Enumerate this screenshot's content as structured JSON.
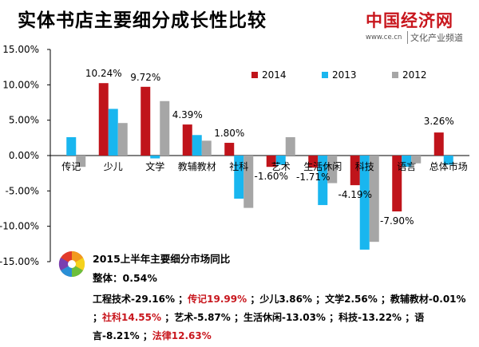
{
  "header": {
    "title": "实体书店主要细分成长性比较",
    "logo_name": "中国经济网",
    "logo_url": "www.ce.cn",
    "logo_sub": "文化产业频道"
  },
  "chart_data": {
    "type": "bar",
    "categories": [
      "传记",
      "少儿",
      "文学",
      "教辅教材",
      "社科",
      "艺术",
      "生活休闲",
      "科技",
      "语言",
      "总体市场"
    ],
    "series": [
      {
        "name": "2014",
        "color": "#c0141b",
        "values": [
          0,
          10.24,
          9.72,
          4.39,
          1.8,
          -1.6,
          -1.71,
          -4.19,
          -7.9,
          3.26
        ]
      },
      {
        "name": "2013",
        "color": "#19b6ef",
        "values": [
          2.6,
          6.6,
          -0.4,
          2.9,
          -6.1,
          -1.3,
          -7.0,
          -13.3,
          -1.6,
          -1.3
        ]
      },
      {
        "name": "2012",
        "color": "#a6a6a6",
        "values": [
          -1.6,
          4.6,
          7.7,
          2.1,
          -7.4,
          2.6,
          -3.9,
          -12.2,
          -1.1,
          0
        ]
      }
    ],
    "data_labels": [
      "",
      "10.24%",
      "9.72%",
      "4.39%",
      "1.80%",
      "-1.60%",
      "-1.71%",
      "-4.19%",
      "-7.90%",
      "3.26%"
    ],
    "yticks": [
      "15.00%",
      "10.00%",
      "5.00%",
      "0.00%",
      "-5.00%",
      "-10.00%",
      "-15.00%"
    ],
    "ylim": [
      -15,
      15
    ],
    "legend_position": "top-right",
    "grid": false
  },
  "note": {
    "title": "2015上半年主要细分市场同比",
    "overall": "整体：0.54%",
    "items": [
      {
        "text": "工程技术-29.16% ；",
        "highlight": false
      },
      {
        "text": "传记19.99% ",
        "highlight": true
      },
      {
        "text": "；少儿3.86% ；文学2.56% ；教辅教材-0.01% ；",
        "highlight": false
      },
      {
        "text": "社科14.55% ",
        "highlight": true
      },
      {
        "text": "；艺术-5.87% ；生活休闲-13.03% ；科技-13.22% ；语言-8.21% ；",
        "highlight": false
      },
      {
        "text": "法律12.63%",
        "highlight": true
      }
    ]
  }
}
